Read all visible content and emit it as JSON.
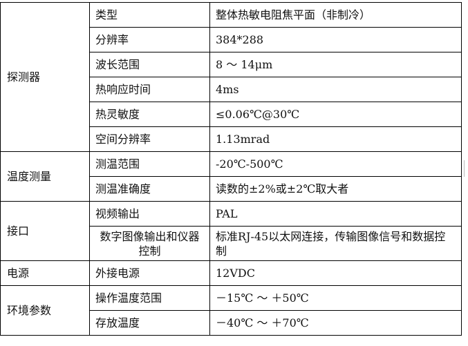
{
  "table": {
    "groups": [
      {
        "label": "探测器",
        "rows": [
          {
            "name": "类型",
            "value": "整体热敏电阻焦平面（非制冷）"
          },
          {
            "name": "分辨率",
            "value": "384*288"
          },
          {
            "name": "波长范围",
            "value": "8 ～ 14μm"
          },
          {
            "name": "热响应时间",
            "value": "4ms"
          },
          {
            "name": "热灵敏度",
            "value": "≤0.06℃@30℃"
          },
          {
            "name": "空间分辨率",
            "value": "1.13mrad"
          }
        ]
      },
      {
        "label": "温度测量",
        "rows": [
          {
            "name": "测温范围",
            "value": "-20℃-500℃"
          },
          {
            "name": "测温准确度",
            "value": "读数的±2%或±2℃取大者"
          }
        ]
      },
      {
        "label": "接口",
        "rows": [
          {
            "name": "视频输出",
            "value": "PAL"
          },
          {
            "name": "数字图像输出和仪器控制",
            "value": "标准RJ-45以太网连接，传输图像信号和数据控制"
          }
        ]
      },
      {
        "label": "电源",
        "rows": [
          {
            "name": "外接电源",
            "value": "12VDC"
          }
        ]
      },
      {
        "label": "环境参数",
        "rows": [
          {
            "name": "操作温度范围",
            "value": "－15℃ ～ ＋50℃"
          },
          {
            "name": "存放温度",
            "value": "－40℃ ～ ＋70℃"
          }
        ]
      }
    ]
  }
}
